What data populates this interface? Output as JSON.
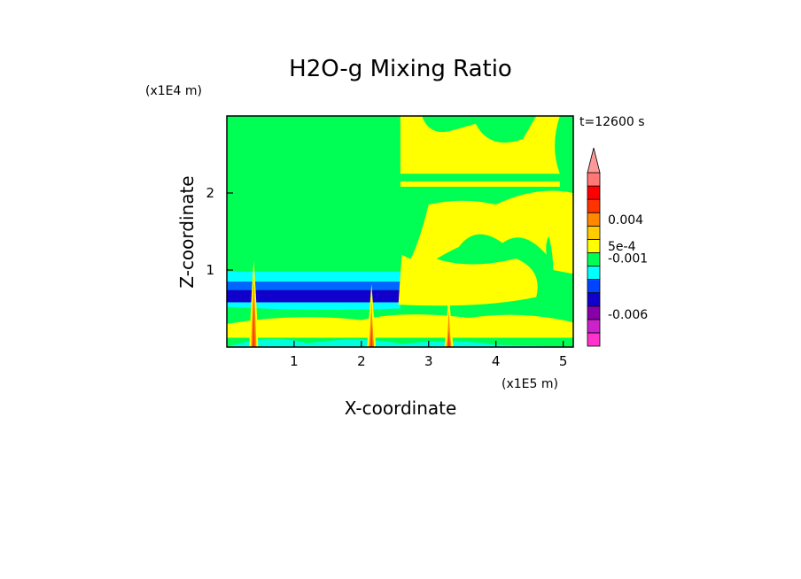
{
  "chart_data": {
    "type": "heatmap",
    "title": "H2O-g Mixing Ratio",
    "time_label": "t=12600 s",
    "xlabel": "X-coordinate",
    "ylabel": "Z-coordinate",
    "x_scale_label": "(x1E5 m)",
    "y_scale_label": "(x1E4 m)",
    "xlim": [
      0,
      5.15
    ],
    "ylim": [
      0,
      3.0
    ],
    "x_ticks": [
      {
        "value": 1,
        "label": "1"
      },
      {
        "value": 2,
        "label": "2"
      },
      {
        "value": 3,
        "label": "3"
      },
      {
        "value": 4,
        "label": "4"
      },
      {
        "value": 5,
        "label": "5"
      }
    ],
    "y_ticks": [
      {
        "value": 1,
        "label": "1"
      },
      {
        "value": 2,
        "label": "2"
      }
    ],
    "colorbar": {
      "colors": [
        "#ff33cc",
        "#cc22cc",
        "#8800aa",
        "#1100cc",
        "#0044ff",
        "#00ffff",
        "#00ff55",
        "#ffff00",
        "#ffcc00",
        "#ff8800",
        "#ff3300",
        "#ff0000",
        "#ff7777"
      ],
      "over_color": "#ff9999",
      "labels": [
        {
          "text": "0.004",
          "level": 9.5
        },
        {
          "text": "5e-4",
          "level": 7.5
        },
        {
          "text": "-0.001",
          "level": 6.6
        },
        {
          "text": "-0.006",
          "level": 2.4
        }
      ]
    },
    "field_colors": {
      "background": "#00ff55",
      "yellow": "#ffff00",
      "cyan": "#00ffff",
      "light_blue": "#0066ff",
      "dark_blue": "#1100cc",
      "orange": "#ff8800",
      "red": "#ff3300"
    },
    "plumes_x": [
      0.4,
      2.15,
      3.3
    ]
  }
}
